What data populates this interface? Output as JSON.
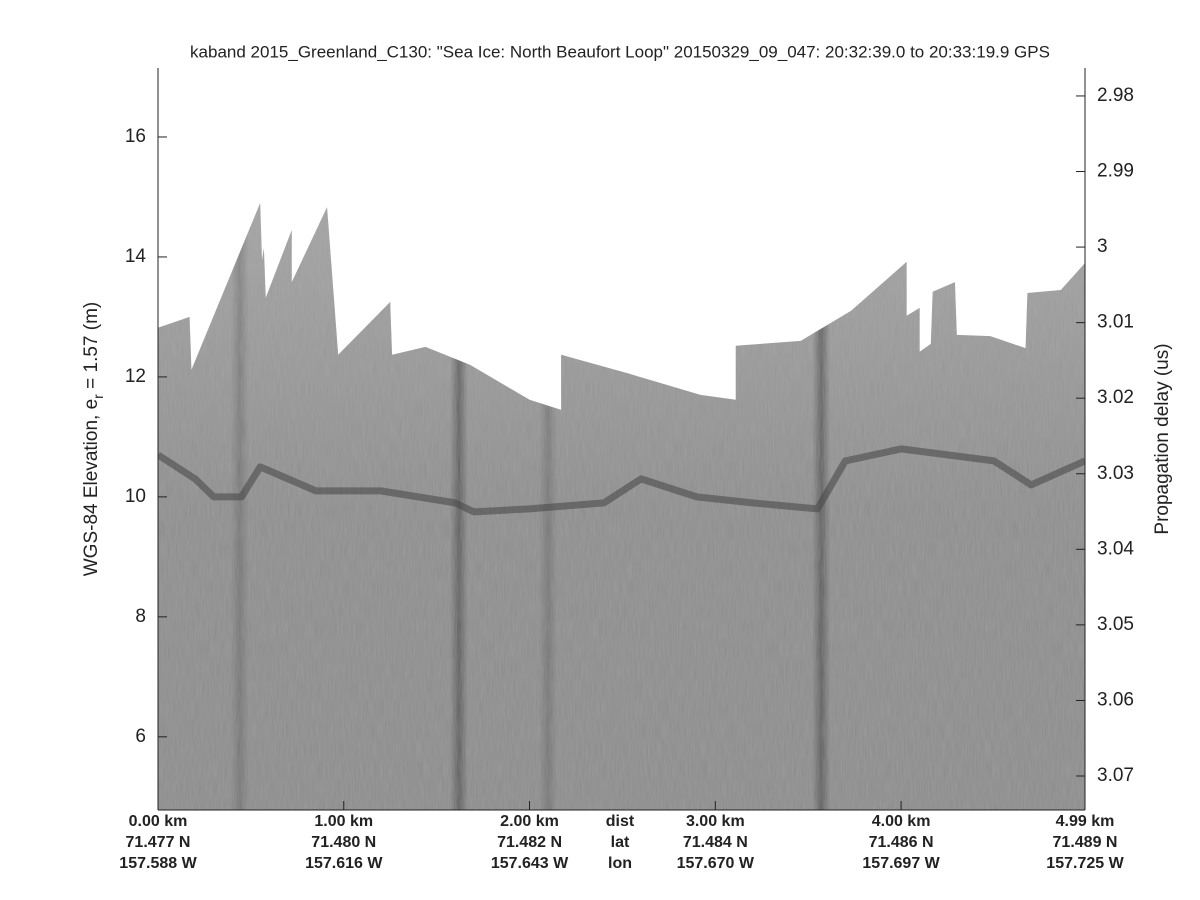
{
  "chart_data": {
    "type": "area",
    "title": "kaband 2015_Greenland_C130: \"Sea Ice: North Beaufort Loop\"  20150329_09_047: 20:32:39.0 to 20:33:19.9 GPS",
    "ylabel": "WGS-84 Elevation, e",
    "ylabel_sub": "r",
    "ylabel_rest": " = 1.57 (m)",
    "y2label": "Propagation delay (us)",
    "row_labels": [
      "dist",
      "lat",
      "lon"
    ],
    "xlim": [
      0,
      4.99
    ],
    "xticks": [
      {
        "value": 0,
        "label": "0.00 km"
      },
      {
        "value": 1,
        "label": "1.00 km"
      },
      {
        "value": 2,
        "label": "2.00 km"
      },
      {
        "value": 3,
        "label": "3.00 km"
      },
      {
        "value": 4,
        "label": "4.00 km"
      },
      {
        "value": 4.99,
        "label": "4.99 km"
      }
    ],
    "lat_labels": [
      "71.477 N",
      "71.480 N",
      "71.482 N",
      "71.484 N",
      "71.486 N",
      "71.489 N"
    ],
    "lon_labels": [
      "157.588 W",
      "157.616 W",
      "157.643 W",
      "157.670 W",
      "157.697 W",
      "157.725 W"
    ],
    "ylim": [
      4.78,
      17.15
    ],
    "yticks": [
      6,
      8,
      10,
      12,
      14,
      16
    ],
    "y2lim": [
      3.0745,
      2.9763
    ],
    "y2ticks": [
      2.98,
      2.99,
      3,
      3.01,
      3.02,
      3.03,
      3.04,
      3.05,
      3.06,
      3.07
    ],
    "series": [
      {
        "type": "area",
        "color": "#8f8f8f",
        "x": [
          0,
          0.17,
          0.18,
          0.55,
          0.56,
          0.57,
          0.58,
          0.72,
          0.72,
          0.91,
          0.97,
          1.25,
          1.26,
          1.44,
          1.68,
          2.0,
          2.17,
          2.17,
          2.54,
          2.92,
          3.11,
          3.11,
          3.46,
          3.73,
          4.03,
          4.03,
          4.1,
          4.1,
          4.16,
          4.17,
          4.29,
          4.3,
          4.48,
          4.67,
          4.68,
          4.86,
          4.99
        ],
        "values": [
          12.82,
          13.0,
          12.12,
          14.9,
          13.95,
          14.15,
          13.32,
          14.45,
          13.58,
          14.83,
          12.37,
          13.25,
          12.37,
          12.5,
          12.2,
          11.62,
          11.45,
          12.37,
          12.05,
          11.7,
          11.62,
          12.52,
          12.6,
          13.1,
          13.92,
          13.02,
          13.15,
          12.42,
          12.55,
          13.42,
          13.58,
          12.7,
          12.68,
          12.48,
          13.4,
          13.45,
          13.9
        ]
      },
      {
        "type": "line",
        "color": "#444444",
        "x": [
          0,
          0.2,
          0.3,
          0.45,
          0.55,
          0.7,
          0.85,
          1.2,
          1.6,
          1.7,
          2.0,
          2.4,
          2.5,
          2.6,
          2.9,
          3.2,
          3.55,
          3.7,
          4.0,
          4.5,
          4.7,
          4.99
        ],
        "values": [
          10.7,
          10.3,
          10.0,
          10.0,
          10.5,
          10.3,
          10.1,
          10.1,
          9.9,
          9.75,
          9.8,
          9.9,
          10.1,
          10.3,
          10.0,
          9.9,
          9.8,
          10.6,
          10.8,
          10.6,
          10.2,
          10.6
        ]
      }
    ]
  }
}
